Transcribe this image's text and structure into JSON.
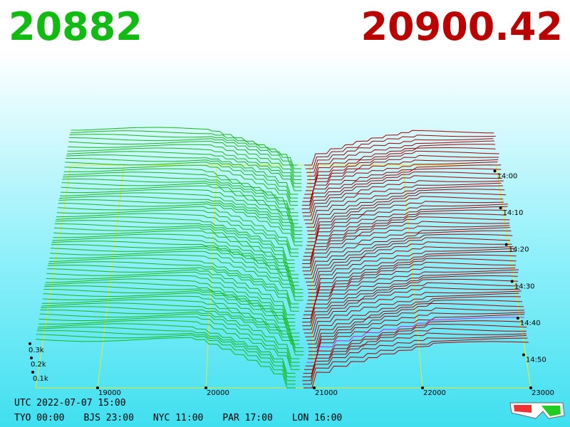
{
  "bid_price": "20882",
  "ask_price": "20900.42",
  "price_axis": {
    "labels": [
      "19000",
      "20000",
      "21000",
      "22000",
      "23000"
    ]
  },
  "time_axis": {
    "labels": [
      "14:00",
      "14:10",
      "14:20",
      "14:30",
      "14:40",
      "14:50"
    ]
  },
  "depth_axis": {
    "labels": [
      "0.3k",
      "0.2k",
      "0.1k"
    ]
  },
  "footer": {
    "utc": "UTC 2022-07-07 15:00",
    "cities": [
      "TYO 00:00",
      "BJS 23:00",
      "NYC 11:00",
      "PAR 17:00",
      "LON 16:00"
    ]
  }
}
